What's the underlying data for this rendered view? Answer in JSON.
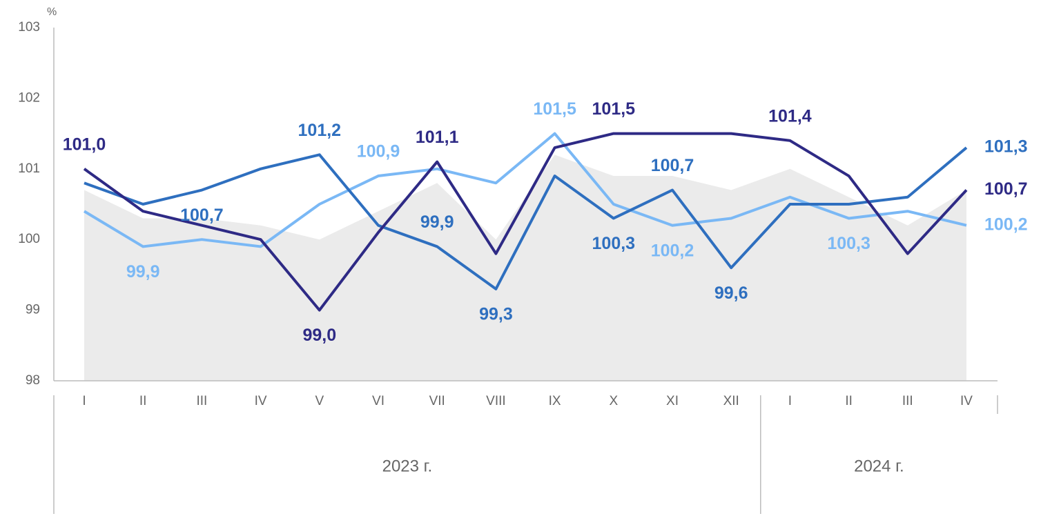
{
  "chart_data": {
    "type": "line",
    "y_unit": "%",
    "categories": [
      "I",
      "II",
      "III",
      "IV",
      "V",
      "VI",
      "VII",
      "VIII",
      "IX",
      "X",
      "XI",
      "XII",
      "I",
      "II",
      "III",
      "IV"
    ],
    "groups": [
      {
        "label": "2023 г.",
        "count": 12
      },
      {
        "label": "2024 г.",
        "count": 4
      }
    ],
    "ylim": [
      98,
      103
    ],
    "yticks": [
      98,
      99,
      100,
      101,
      102,
      103
    ],
    "area": {
      "color": "#ebebeb",
      "values": [
        100.7,
        100.3,
        100.3,
        100.2,
        100.0,
        100.4,
        100.8,
        100.0,
        101.2,
        100.9,
        100.9,
        100.7,
        101.0,
        100.6,
        100.2,
        100.7
      ]
    },
    "series": [
      {
        "color": "#7ab8f5",
        "values": [
          100.4,
          99.9,
          100.0,
          99.9,
          100.5,
          100.9,
          101.0,
          100.8,
          101.5,
          100.5,
          100.2,
          100.3,
          100.6,
          100.3,
          100.4,
          100.2
        ],
        "value_labels": [
          null,
          "99,9",
          null,
          null,
          null,
          "100,9",
          null,
          null,
          "101,5",
          null,
          "100,2",
          null,
          null,
          "100,3",
          null,
          "100,2"
        ]
      },
      {
        "color": "#2e6fbf",
        "values": [
          100.8,
          100.5,
          100.7,
          101.0,
          101.2,
          100.2,
          99.9,
          99.3,
          100.9,
          100.3,
          100.7,
          99.6,
          100.5,
          100.5,
          100.6,
          101.3
        ],
        "value_labels": [
          null,
          null,
          "100,7",
          null,
          "101,2",
          null,
          "99,9",
          "99,3",
          null,
          "100,3",
          "100,7",
          "99,6",
          null,
          null,
          null,
          "101,3"
        ]
      },
      {
        "color": "#2e2a85",
        "values": [
          101.0,
          100.4,
          100.2,
          100.0,
          99.0,
          100.1,
          101.1,
          99.8,
          101.3,
          101.5,
          101.5,
          101.5,
          101.4,
          100.9,
          99.8,
          100.7
        ],
        "value_labels": [
          "101,0",
          null,
          null,
          null,
          "99,0",
          null,
          "101,1",
          null,
          null,
          "101,5",
          null,
          null,
          "101,4",
          null,
          null,
          "100,7"
        ]
      }
    ]
  }
}
